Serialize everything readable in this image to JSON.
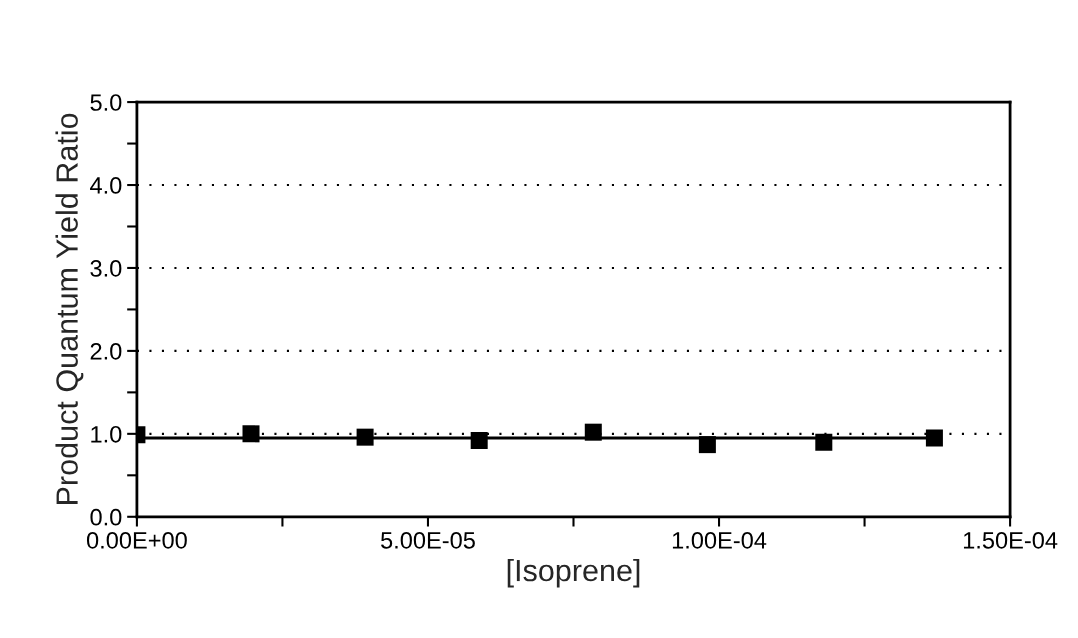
{
  "chart_data": {
    "type": "scatter",
    "xlabel": "[Isoprene]",
    "ylabel": "Product Quantum Yield Ratio",
    "series": [
      {
        "color": "#000000",
        "marker": "square",
        "x": [
          0,
          1.96e-05,
          3.92e-05,
          5.88e-05,
          7.84e-05,
          9.8e-05,
          0.000118,
          0.000137
        ],
        "values": [
          0.99,
          1.0,
          0.96,
          0.92,
          1.02,
          0.87,
          0.9,
          0.95
        ]
      },
      {
        "type": "line",
        "color": "#000000",
        "marker": "none",
        "line_style": "solid",
        "x": [
          0,
          0.000137
        ],
        "values": [
          0.95,
          0.95
        ]
      }
    ],
    "xlim": [
      0,
      0.00015
    ],
    "xticks": [
      {
        "value": 0,
        "label": "0.00E+00"
      },
      {
        "value": 2.5e-05,
        "label": null
      },
      {
        "value": 5e-05,
        "label": "5.00E-05"
      },
      {
        "value": 7.5e-05,
        "label": null
      },
      {
        "value": 0.0001,
        "label": "1.00E-04"
      },
      {
        "value": 0.000125,
        "label": null
      },
      {
        "value": 0.00015,
        "label": "1.50E-04"
      }
    ],
    "ylim": [
      0,
      5
    ],
    "yticks": [
      {
        "value": 0,
        "label": "0.0"
      },
      {
        "value": 0.5,
        "label": null
      },
      {
        "value": 1,
        "label": "1.0"
      },
      {
        "value": 1.5,
        "label": null
      },
      {
        "value": 2,
        "label": "2.0"
      },
      {
        "value": 2.5,
        "label": null
      },
      {
        "value": 3,
        "label": "3.0"
      },
      {
        "value": 3.5,
        "label": null
      },
      {
        "value": 4,
        "label": "4.0"
      },
      {
        "value": 4.5,
        "label": null
      },
      {
        "value": 5,
        "label": "5.0"
      }
    ],
    "grid": "y"
  }
}
